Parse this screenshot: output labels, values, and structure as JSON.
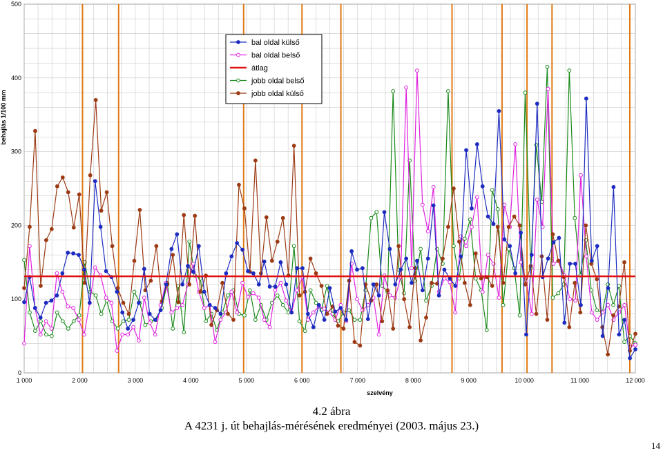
{
  "figure": {
    "number": "4.2 ábra",
    "title": "A 4231 j. út behajlás-mérésének eredményei (2003. május 23.)",
    "page_number": "14"
  },
  "chart_data": {
    "type": "line",
    "title": "",
    "xlabel": "szelvény",
    "ylabel": "behajlás 1/100 mm",
    "xlim": [
      1000,
      12000
    ],
    "ylim": [
      0,
      500
    ],
    "x_ticks": [
      1000,
      2000,
      3000,
      4000,
      5000,
      6000,
      7000,
      8000,
      9000,
      10000,
      11000,
      12000
    ],
    "x_tick_labels": [
      "1 000",
      "2 000",
      "3 000",
      "4 000",
      "5 000",
      "6 000",
      "7 000",
      "8 000",
      "9 000",
      "10 000",
      "11 000",
      "12 000"
    ],
    "y_ticks": [
      0,
      100,
      200,
      300,
      400,
      500
    ],
    "y_tick_labels": [
      "0",
      "100",
      "200",
      "300",
      "400",
      "500"
    ],
    "grid": true,
    "legend_position": "top-center",
    "vertical_markers": [
      2050,
      2700,
      4950,
      6000,
      6700,
      8700,
      9600,
      10050,
      10500,
      11900
    ],
    "vertical_marker_color": "#e07a14",
    "series": [
      {
        "name": "bal oldal külső",
        "color": "#1c2bc0",
        "marker": "filled",
        "values": [
          96,
          130,
          88,
          75,
          95,
          98,
          105,
          135,
          163,
          162,
          160,
          140,
          95,
          260,
          198,
          138,
          130,
          110,
          82,
          60,
          72,
          95,
          141,
          80,
          72,
          85,
          120,
          168,
          188,
          120,
          145,
          137,
          172,
          110,
          92,
          88,
          80,
          135,
          158,
          176,
          167,
          138,
          135,
          120,
          151,
          117,
          117,
          150,
          120,
          82,
          142,
          142,
          80,
          62,
          92,
          72,
          115,
          83,
          88,
          72,
          165,
          140,
          142,
          73,
          120,
          105,
          218,
          168,
          120,
          140,
          155,
          122,
          152,
          112,
          155,
          227,
          105,
          140,
          128,
          118,
          158,
          302,
          223,
          310,
          253,
          212,
          202,
          355,
          181,
          172,
          135,
          190,
          52,
          160,
          365,
          130,
          155,
          177,
          183,
          68,
          148,
          148,
          92,
          372,
          152,
          172,
          50,
          115,
          252,
          52,
          72,
          20,
          32
        ]
      },
      {
        "name": "bal oldal belső",
        "color": "#e020e0",
        "marker": "open",
        "values": [
          40,
          172,
          88,
          52,
          70,
          60,
          135,
          110,
          90,
          88,
          72,
          52,
          95,
          143,
          132,
          102,
          95,
          30,
          52,
          52,
          62,
          44,
          102,
          68,
          52,
          92,
          122,
          82,
          88,
          92,
          120,
          148,
          110,
          88,
          92,
          42,
          72,
          82,
          110,
          82,
          122,
          103,
          108,
          102,
          72,
          62,
          112,
          122,
          98,
          82,
          112,
          130,
          72,
          82,
          90,
          87,
          82,
          72,
          92,
          70,
          148,
          100,
          85,
          92,
          102,
          52,
          132,
          105,
          102,
          130,
          387,
          142,
          410,
          228,
          192,
          252,
          110,
          128,
          123,
          82,
          185,
          172,
          198,
          238,
          110,
          160,
          148,
          102,
          228,
          198,
          310,
          150,
          125,
          80,
          235,
          198,
          385,
          148,
          152,
          132,
          100,
          98,
          268,
          158,
          82,
          72,
          82,
          92,
          72,
          82,
          92,
          35,
          38
        ]
      },
      {
        "name": "átlag",
        "color": "#e01010",
        "marker": "none",
        "values": [
          131,
          131
        ]
      },
      {
        "name": "jobb oldal belső",
        "color": "#1a8a1a",
        "marker": "open",
        "values": [
          153,
          82,
          57,
          70,
          52,
          50,
          82,
          70,
          60,
          70,
          78,
          150,
          110,
          105,
          80,
          98,
          70,
          60,
          70,
          72,
          110,
          95,
          65,
          70,
          72,
          88,
          122,
          60,
          118,
          55,
          178,
          132,
          128,
          70,
          80,
          58,
          82,
          105,
          112,
          80,
          78,
          112,
          72,
          92,
          72,
          95,
          105,
          92,
          82,
          172,
          70,
          57,
          112,
          95,
          85,
          118,
          80,
          70,
          82,
          85,
          72,
          72,
          112,
          210,
          218,
          118,
          110,
          382,
          140,
          108,
          288,
          125,
          168,
          98,
          118,
          168,
          148,
          382,
          172,
          128,
          182,
          208,
          128,
          112,
          58,
          248,
          222,
          92,
          168,
          142,
          78,
          380,
          142,
          309,
          232,
          415,
          102,
          108,
          120,
          410,
          210,
          132,
          180,
          112,
          85,
          82,
          120,
          92,
          118,
          42,
          50,
          40
        ]
      },
      {
        "name": "jobb oldal külső",
        "color": "#9c3a14",
        "marker": "filled",
        "values": [
          115,
          198,
          328,
          118,
          180,
          195,
          253,
          265,
          245,
          197,
          242,
          122,
          268,
          370,
          220,
          245,
          172,
          115,
          95,
          80,
          152,
          221,
          112,
          125,
          172,
          97,
          120,
          160,
          96,
          214,
          120,
          213,
          110,
          132,
          65,
          85,
          122,
          80,
          72,
          255,
          223,
          137,
          288,
          135,
          211,
          152,
          178,
          210,
          132,
          308,
          105,
          110,
          155,
          135,
          118,
          80,
          90,
          64,
          60,
          125,
          42,
          37,
          120,
          98,
          120,
          70,
          112,
          60,
          172,
          100,
          62,
          142,
          44,
          75,
          122,
          121,
          155,
          198,
          250,
          178,
          122,
          92,
          162,
          128,
          130,
          118,
          198,
          122,
          198,
          212,
          200,
          120,
          145,
          80,
          158,
          72,
          188,
          152,
          130,
          62,
          122,
          82,
          200,
          148,
          127,
          62,
          25,
          78,
          90,
          150,
          30,
          53
        ]
      }
    ]
  }
}
